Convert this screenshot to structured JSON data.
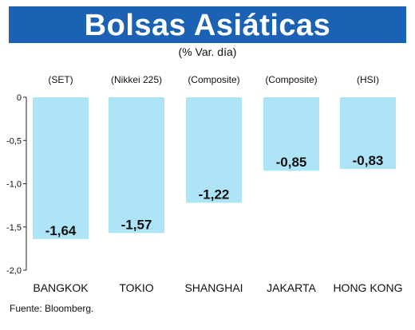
{
  "header": {
    "title": "Bolsas Asiáticas",
    "subtitle": "(% Var. día)"
  },
  "source": "Fuente: Bloomberg.",
  "colors": {
    "banner": "#1b62b5",
    "bar": "#aee4f8",
    "axis": "#222222"
  },
  "chart_data": {
    "type": "bar",
    "title": "Bolsas Asiáticas",
    "subtitle": "(% Var. día)",
    "categories": [
      "BANGKOK",
      "TOKIO",
      "SHANGHAI",
      "JAKARTA",
      "HONG KONG"
    ],
    "indices": [
      "(SET)",
      "(Nikkei 225)",
      "(Composite)",
      "(Composite)",
      "(HSI)"
    ],
    "values": [
      -1.64,
      -1.57,
      -1.22,
      -0.85,
      -0.83
    ],
    "value_labels": [
      "-1,64",
      "-1,57",
      "-1,22",
      "-0,85",
      "-0,83"
    ],
    "ylim": [
      -2.0,
      0
    ],
    "yticks": [
      0,
      -0.5,
      -1.0,
      -1.5,
      -2.0
    ],
    "ytick_labels": [
      "0",
      "-0,5",
      "-1,0",
      "-1,5",
      "-2,0"
    ],
    "xlabel": "",
    "ylabel": "",
    "grid": false,
    "legend": "none"
  }
}
